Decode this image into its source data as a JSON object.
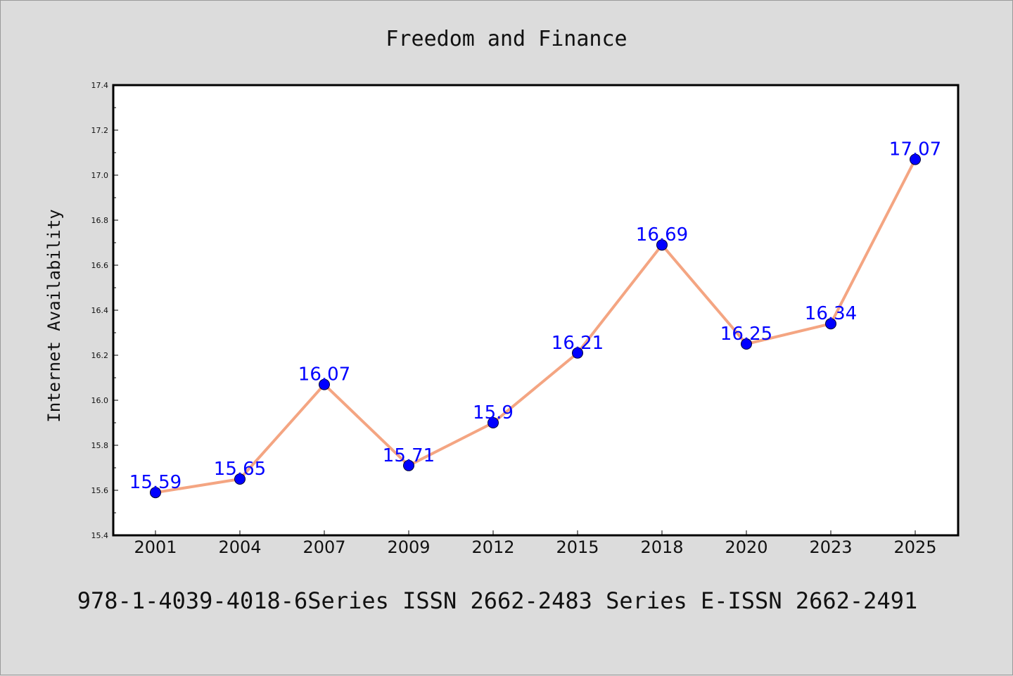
{
  "footer": "978-1-4039-4018-6Series ISSN 2662-2483 Series E-ISSN 2662-2491",
  "colors": {
    "background": "#dcdcdc",
    "plot_area": "#ffffff",
    "line": "#f4a582",
    "marker": "#0000ff",
    "data_label": "#0000ff"
  },
  "chart_data": {
    "type": "line",
    "title": "Freedom and Finance",
    "xlabel": "",
    "ylabel": "Internet Availability",
    "categories": [
      "2001",
      "2004",
      "2007",
      "2009",
      "2012",
      "2015",
      "2018",
      "2020",
      "2023",
      "2025"
    ],
    "series": [
      {
        "values": [
          15.59,
          15.65,
          16.07,
          15.71,
          15.9,
          16.21,
          16.69,
          16.25,
          16.34,
          17.07
        ],
        "data_labels": [
          "15.59",
          "15.65",
          "16.07",
          "15.71",
          "15.9",
          "16.21",
          "16.69",
          "16.25",
          "16.34",
          "17.07"
        ]
      }
    ],
    "ylim": [
      15.4,
      17.4
    ],
    "yticks": [
      "15.4",
      "15.6",
      "15.8",
      "16.0",
      "16.2",
      "16.4",
      "16.6",
      "16.8",
      "17.0",
      "17.2",
      "17.4"
    ],
    "grid": false,
    "legend": "none"
  }
}
